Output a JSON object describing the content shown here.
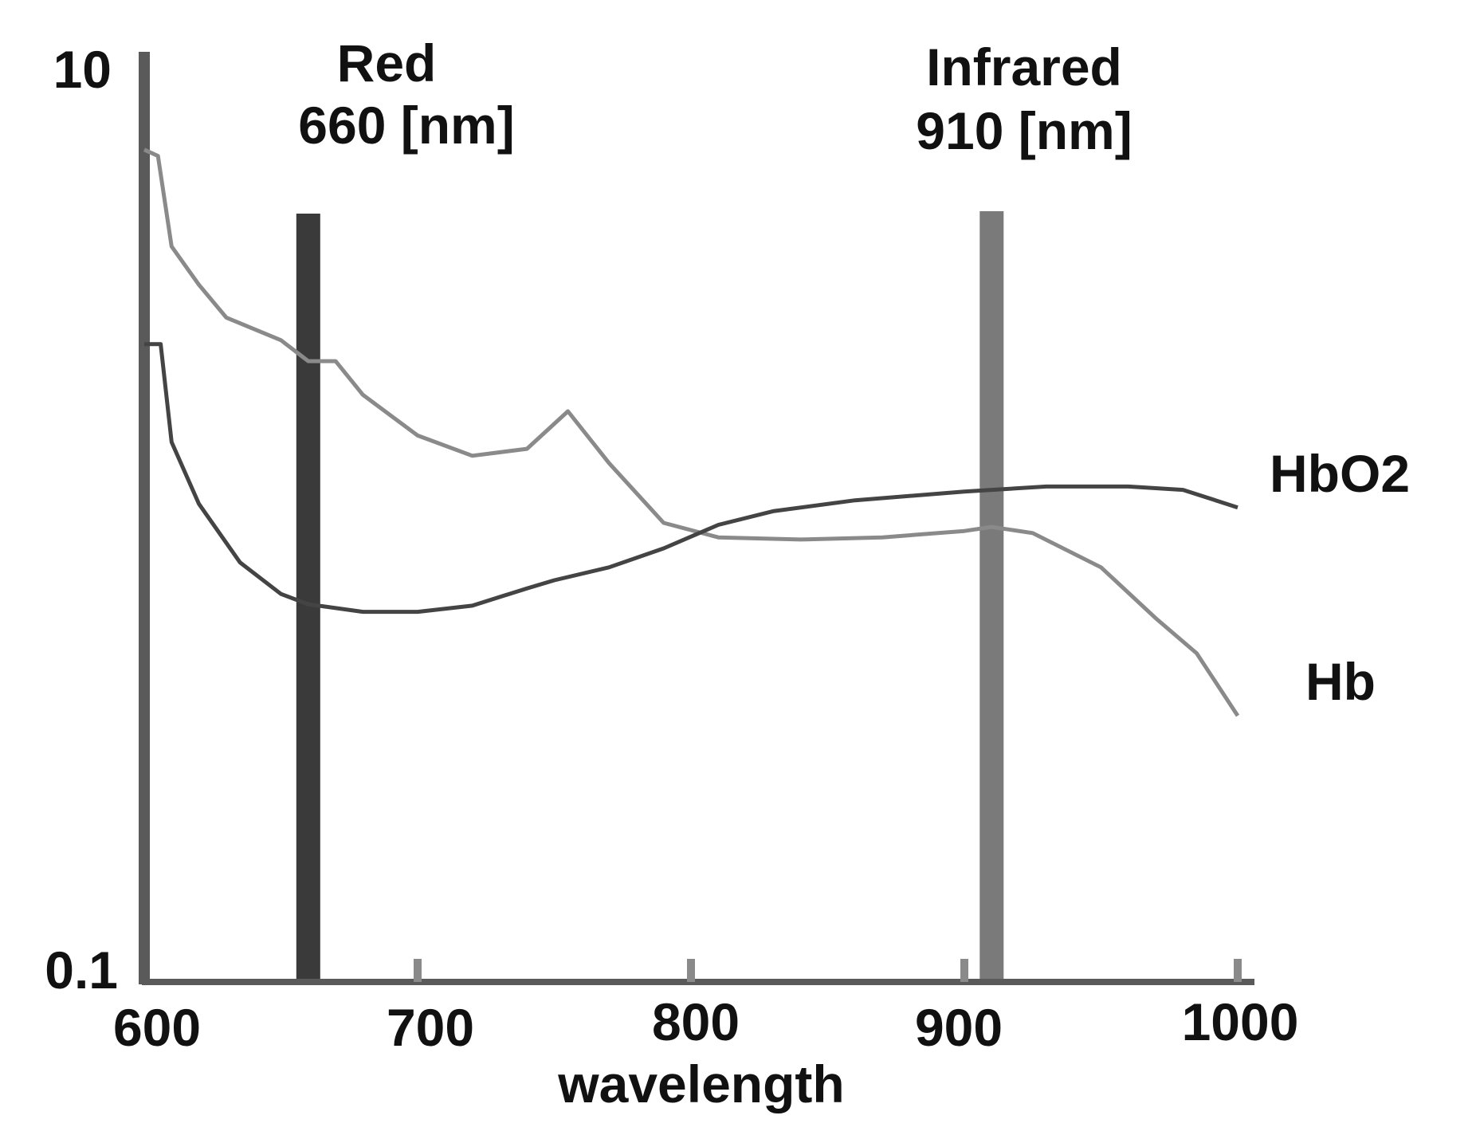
{
  "chart_data": {
    "type": "line",
    "title": "",
    "xlabel": "wavelength",
    "ylabel": "",
    "xlim": [
      600,
      1000
    ],
    "ylim": [
      0.1,
      10
    ],
    "yscale": "log",
    "x_ticks": [
      600,
      700,
      800,
      900,
      1000
    ],
    "x_tick_labels": [
      "600",
      "700",
      "800",
      "900",
      "1000"
    ],
    "y_tick_labels": [
      "10",
      "0.1"
    ],
    "y_ticks": [
      10,
      0.1
    ],
    "grid": false,
    "bands": [
      {
        "name": "Red",
        "label_line1": "Red",
        "label_line2": "660 [nm]",
        "x": 660
      },
      {
        "name": "Infrared",
        "label_line1": "Infrared",
        "label_line2": "910 [nm]",
        "x": 910
      }
    ],
    "series": [
      {
        "name": "Hb",
        "label": "Hb",
        "color": "#8a8a8a",
        "points": [
          [
            600,
            6.5
          ],
          [
            605,
            6.3
          ],
          [
            610,
            4.0
          ],
          [
            620,
            3.3
          ],
          [
            630,
            2.8
          ],
          [
            650,
            2.5
          ],
          [
            660,
            2.25
          ],
          [
            670,
            2.25
          ],
          [
            680,
            1.9
          ],
          [
            700,
            1.55
          ],
          [
            720,
            1.4
          ],
          [
            740,
            1.45
          ],
          [
            755,
            1.75
          ],
          [
            770,
            1.35
          ],
          [
            790,
            1.0
          ],
          [
            810,
            0.93
          ],
          [
            840,
            0.92
          ],
          [
            870,
            0.93
          ],
          [
            900,
            0.96
          ],
          [
            910,
            0.98
          ],
          [
            925,
            0.95
          ],
          [
            950,
            0.8
          ],
          [
            970,
            0.62
          ],
          [
            985,
            0.52
          ],
          [
            1000,
            0.38
          ]
        ]
      },
      {
        "name": "HbO2",
        "label": "HbO2",
        "color": "#444444",
        "points": [
          [
            600,
            2.45
          ],
          [
            606,
            2.45
          ],
          [
            610,
            1.5
          ],
          [
            620,
            1.1
          ],
          [
            635,
            0.82
          ],
          [
            650,
            0.7
          ],
          [
            660,
            0.665
          ],
          [
            680,
            0.64
          ],
          [
            700,
            0.64
          ],
          [
            720,
            0.66
          ],
          [
            740,
            0.72
          ],
          [
            750,
            0.75
          ],
          [
            770,
            0.8
          ],
          [
            790,
            0.88
          ],
          [
            810,
            0.99
          ],
          [
            830,
            1.06
          ],
          [
            860,
            1.12
          ],
          [
            900,
            1.17
          ],
          [
            910,
            1.18
          ],
          [
            930,
            1.2
          ],
          [
            960,
            1.2
          ],
          [
            980,
            1.18
          ],
          [
            1000,
            1.08
          ]
        ]
      }
    ]
  }
}
